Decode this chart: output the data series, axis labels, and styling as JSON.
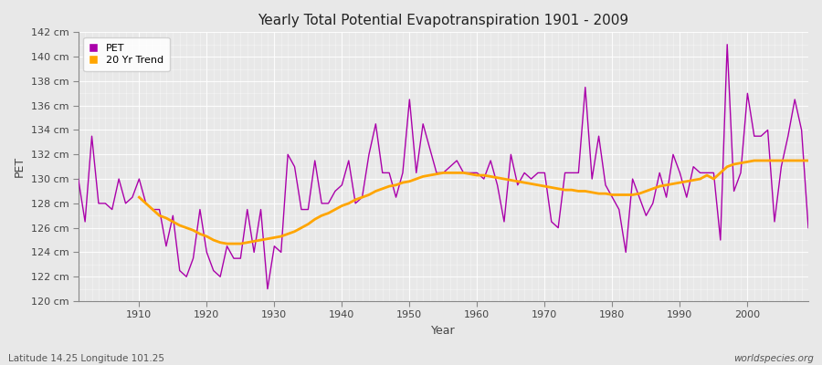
{
  "title": "Yearly Total Potential Evapotranspiration 1901 - 2009",
  "xlabel": "Year",
  "ylabel": "PET",
  "subtitle_left": "Latitude 14.25 Longitude 101.25",
  "subtitle_right": "worldspecies.org",
  "pet_color": "#AA00AA",
  "trend_color": "#FFA500",
  "background_color": "#e8e8e8",
  "plot_bg_color": "#e8e8e8",
  "ylim": [
    120,
    142
  ],
  "ytick_labels": [
    "120 cm",
    "122 cm",
    "124 cm",
    "126 cm",
    "128 cm",
    "130 cm",
    "132 cm",
    "134 cm",
    "136 cm",
    "138 cm",
    "140 cm",
    "142 cm"
  ],
  "ytick_values": [
    120,
    122,
    124,
    126,
    128,
    130,
    132,
    134,
    136,
    138,
    140,
    142
  ],
  "years": [
    1901,
    1902,
    1903,
    1904,
    1905,
    1906,
    1907,
    1908,
    1909,
    1910,
    1911,
    1912,
    1913,
    1914,
    1915,
    1916,
    1917,
    1918,
    1919,
    1920,
    1921,
    1922,
    1923,
    1924,
    1925,
    1926,
    1927,
    1928,
    1929,
    1930,
    1931,
    1932,
    1933,
    1934,
    1935,
    1936,
    1937,
    1938,
    1939,
    1940,
    1941,
    1942,
    1943,
    1944,
    1945,
    1946,
    1947,
    1948,
    1949,
    1950,
    1951,
    1952,
    1953,
    1954,
    1955,
    1956,
    1957,
    1958,
    1959,
    1960,
    1961,
    1962,
    1963,
    1964,
    1965,
    1966,
    1967,
    1968,
    1969,
    1970,
    1971,
    1972,
    1973,
    1974,
    1975,
    1976,
    1977,
    1978,
    1979,
    1980,
    1981,
    1982,
    1983,
    1984,
    1985,
    1986,
    1987,
    1988,
    1989,
    1990,
    1991,
    1992,
    1993,
    1994,
    1995,
    1996,
    1997,
    1998,
    1999,
    2000,
    2001,
    2002,
    2003,
    2004,
    2005,
    2006,
    2007,
    2008,
    2009
  ],
  "pet_values": [
    130.0,
    126.5,
    133.5,
    128.0,
    128.0,
    127.5,
    130.0,
    128.0,
    128.5,
    130.0,
    128.0,
    127.5,
    127.5,
    124.5,
    127.0,
    122.5,
    122.0,
    123.5,
    127.5,
    124.0,
    122.5,
    122.0,
    124.5,
    123.5,
    123.5,
    127.5,
    124.0,
    127.5,
    121.0,
    124.5,
    124.0,
    132.0,
    131.0,
    127.5,
    127.5,
    131.5,
    128.0,
    128.0,
    129.0,
    129.5,
    131.5,
    128.0,
    128.5,
    132.0,
    134.5,
    130.5,
    130.5,
    128.5,
    130.5,
    136.5,
    130.5,
    134.5,
    132.5,
    130.5,
    130.5,
    131.0,
    131.5,
    130.5,
    130.5,
    130.5,
    130.0,
    131.5,
    129.5,
    126.5,
    132.0,
    129.5,
    130.5,
    130.0,
    130.5,
    130.5,
    126.5,
    126.0,
    130.5,
    130.5,
    130.5,
    137.5,
    130.0,
    133.5,
    129.5,
    128.5,
    127.5,
    124.0,
    130.0,
    128.5,
    127.0,
    128.0,
    130.5,
    128.5,
    132.0,
    130.5,
    128.5,
    131.0,
    130.5,
    130.5,
    130.5,
    125.0,
    141.0,
    129.0,
    130.5,
    137.0,
    133.5,
    133.5,
    134.0,
    126.5,
    131.0,
    133.5,
    136.5,
    134.0,
    126.0
  ],
  "trend_years": [
    1910,
    1911,
    1912,
    1913,
    1914,
    1915,
    1916,
    1917,
    1918,
    1919,
    1920,
    1921,
    1922,
    1923,
    1924,
    1925,
    1926,
    1927,
    1928,
    1929,
    1930,
    1931,
    1932,
    1933,
    1934,
    1935,
    1936,
    1937,
    1938,
    1939,
    1940,
    1941,
    1942,
    1943,
    1944,
    1945,
    1946,
    1947,
    1948,
    1949,
    1950,
    1951,
    1952,
    1953,
    1954,
    1955,
    1956,
    1957,
    1958,
    1959,
    1960,
    1961,
    1962,
    1963,
    1964,
    1965,
    1966,
    1967,
    1968,
    1969,
    1970,
    1971,
    1972,
    1973,
    1974,
    1975,
    1976,
    1977,
    1978,
    1979,
    1980,
    1981,
    1982,
    1983,
    1984,
    1985,
    1986,
    1987,
    1988,
    1989,
    1990,
    1991,
    1992,
    1993,
    1994,
    1995,
    1996,
    1997,
    1998,
    1999,
    2000,
    2001,
    2002,
    2003,
    2004,
    2005,
    2006,
    2007,
    2008,
    2009
  ],
  "trend_values": [
    128.5,
    128.0,
    127.5,
    127.0,
    126.8,
    126.5,
    126.2,
    126.0,
    125.8,
    125.5,
    125.3,
    125.0,
    124.8,
    124.7,
    124.7,
    124.7,
    124.8,
    124.9,
    125.0,
    125.1,
    125.2,
    125.3,
    125.5,
    125.7,
    126.0,
    126.3,
    126.7,
    127.0,
    127.2,
    127.5,
    127.8,
    128.0,
    128.3,
    128.5,
    128.7,
    129.0,
    129.2,
    129.4,
    129.5,
    129.7,
    129.8,
    130.0,
    130.2,
    130.3,
    130.4,
    130.5,
    130.5,
    130.5,
    130.5,
    130.4,
    130.3,
    130.3,
    130.2,
    130.1,
    130.0,
    129.9,
    129.8,
    129.7,
    129.6,
    129.5,
    129.4,
    129.3,
    129.2,
    129.1,
    129.1,
    129.0,
    129.0,
    128.9,
    128.8,
    128.8,
    128.7,
    128.7,
    128.7,
    128.7,
    128.8,
    129.0,
    129.2,
    129.4,
    129.5,
    129.6,
    129.7,
    129.8,
    129.9,
    130.0,
    130.3,
    130.0,
    130.5,
    131.0,
    131.2,
    131.3,
    131.4,
    131.5,
    131.5,
    131.5,
    131.5,
    131.5,
    131.5,
    131.5,
    131.5,
    131.5
  ]
}
